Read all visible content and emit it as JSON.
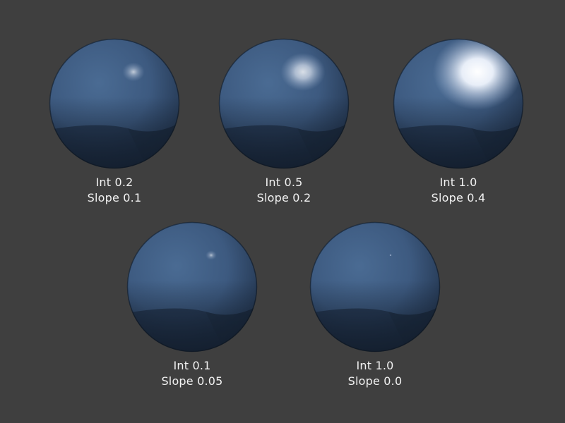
{
  "spheres": [
    {
      "intensity_label": "Int 0.2",
      "slope_label": "Slope 0.1",
      "intensity": 0.2,
      "slope": 0.1
    },
    {
      "intensity_label": "Int 0.5",
      "slope_label": "Slope 0.2",
      "intensity": 0.5,
      "slope": 0.2
    },
    {
      "intensity_label": "Int 1.0",
      "slope_label": "Slope 0.4",
      "intensity": 1.0,
      "slope": 0.4
    },
    {
      "intensity_label": "Int 0.1",
      "slope_label": "Slope 0.05",
      "intensity": 0.1,
      "slope": 0.05
    },
    {
      "intensity_label": "Int 1.0",
      "slope_label": "Slope 0.0",
      "intensity": 1.0,
      "slope": 0.0
    }
  ],
  "colors": {
    "background": "#3f3f3f",
    "sphere_base": "#3d5a80",
    "sphere_shadow": "#131e2d",
    "caption_text": "#f2f2f2"
  }
}
